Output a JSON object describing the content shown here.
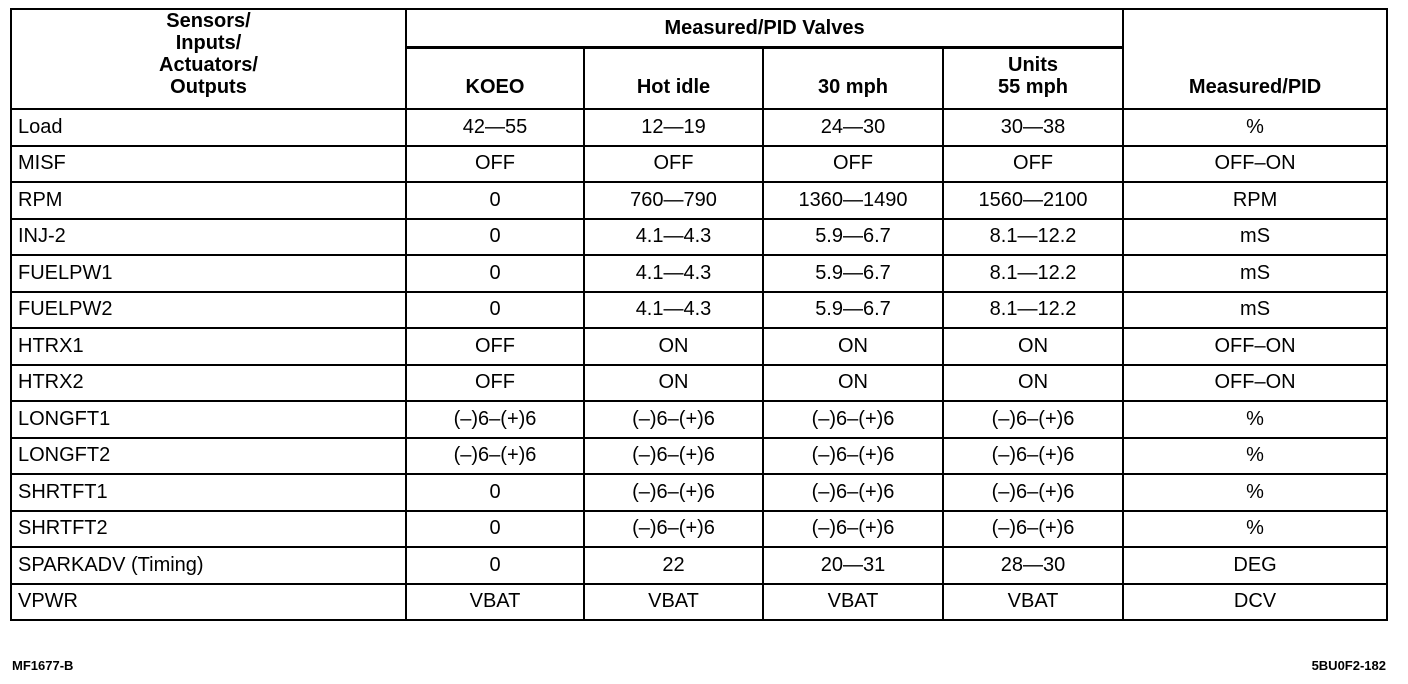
{
  "table": {
    "group_header": "Measured/PID Valves",
    "headers": [
      [
        "Sensors/",
        "Inputs/",
        "Actuators/",
        "Outputs"
      ],
      [
        "KOEO"
      ],
      [
        "Hot idle"
      ],
      [
        "30 mph"
      ],
      [
        "Units",
        "55 mph"
      ],
      [
        "Measured/PID"
      ]
    ],
    "rows": [
      [
        "Load",
        "42—55",
        "12—19",
        "24—30",
        "30—38",
        "%"
      ],
      [
        "MISF",
        "OFF",
        "OFF",
        "OFF",
        "OFF",
        "OFF–ON"
      ],
      [
        "RPM",
        "0",
        "760—790",
        "1360—1490",
        "1560—2100",
        "RPM"
      ],
      [
        "INJ-2",
        "0",
        "4.1—4.3",
        "5.9—6.7",
        "8.1—12.2",
        "mS"
      ],
      [
        "FUELPW1",
        "0",
        "4.1—4.3",
        "5.9—6.7",
        "8.1—12.2",
        "mS"
      ],
      [
        "FUELPW2",
        "0",
        "4.1—4.3",
        "5.9—6.7",
        "8.1—12.2",
        "mS"
      ],
      [
        "HTRX1",
        "OFF",
        "ON",
        "ON",
        "ON",
        "OFF–ON"
      ],
      [
        "HTRX2",
        "OFF",
        "ON",
        "ON",
        "ON",
        "OFF–ON"
      ],
      [
        "LONGFT1",
        "(–)6–(+)6",
        "(–)6–(+)6",
        "(–)6–(+)6",
        "(–)6–(+)6",
        "%"
      ],
      [
        "LONGFT2",
        "(–)6–(+)6",
        "(–)6–(+)6",
        "(–)6–(+)6",
        "(–)6–(+)6",
        "%"
      ],
      [
        "SHRTFT1",
        "0",
        "(–)6–(+)6",
        "(–)6–(+)6",
        "(–)6–(+)6",
        "%"
      ],
      [
        "SHRTFT2",
        "0",
        "(–)6–(+)6",
        "(–)6–(+)6",
        "(–)6–(+)6",
        "%"
      ],
      [
        "SPARKADV (Timing)",
        "0",
        "22",
        "20—31",
        "28—30",
        "DEG"
      ],
      [
        "VPWR",
        "VBAT",
        "VBAT",
        "VBAT",
        "VBAT",
        "DCV"
      ]
    ]
  },
  "footer": {
    "left": "MF1677-B",
    "right": "5BU0F2-182"
  }
}
